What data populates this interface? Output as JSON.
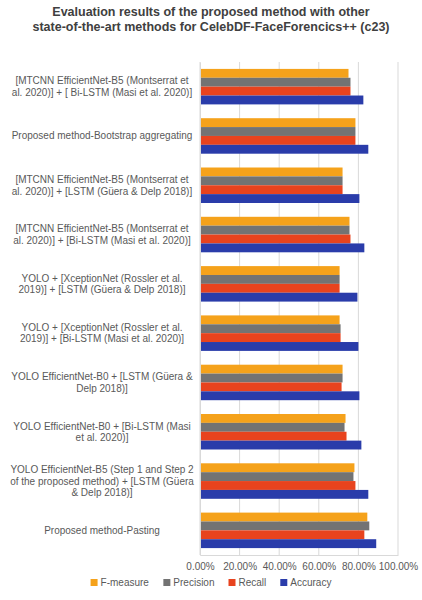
{
  "chart_data": {
    "type": "bar",
    "orientation": "horizontal",
    "title": "Evaluation results of the proposed method with other state-of-the-art methods for CelebDF-FaceForencics++ (c23)",
    "categories": [
      "[MTCNN EfficientNet-B5 (Montserrat et al. 2020)] + [ Bi-LSTM (Masi et al. 2020)]",
      "Proposed method-Bootstrap aggregating",
      "[MTCNN EfficientNet-B5 (Montserrat et al. 2020)] + [LSTM (Güera & Delp 2018)]",
      "[MTCNN EfficientNet-B5 (Montserrat et al. 2020)] + [Bi-LSTM (Masi et al. 2020)]",
      "YOLO + [XceptionNet (Rossler et al. 2019)] + [LSTM (Güera & Delp 2018)]",
      "YOLO + [XceptionNet (Rossler et al. 2019)] + [Bi-LSTM (Masi et al. 2020)]",
      "YOLO EfficientNet-B0 + [LSTM (Güera & Delp 2018)]",
      "YOLO EfficientNet-B0 + [Bi-LSTM (Masi et al. 2020)]",
      "YOLO EfficientNet-B5 (Step 1 and Step 2 of the proposed method) + [LSTM (Güera & Delp 2018)]",
      "Proposed method-Pasting"
    ],
    "series": [
      {
        "name": "F-measure",
        "color": "#f5a21b",
        "values": [
          75,
          78.5,
          72,
          75.5,
          70.5,
          70.5,
          72,
          73.5,
          78,
          84.5
        ]
      },
      {
        "name": "Precision",
        "color": "#737373",
        "values": [
          76,
          78.5,
          72,
          75.5,
          70.5,
          71,
          72,
          73,
          77.5,
          85.5
        ]
      },
      {
        "name": "Recall",
        "color": "#e8431e",
        "values": [
          76,
          78.5,
          72,
          76,
          70.5,
          71,
          71.5,
          74,
          78.5,
          83
        ]
      },
      {
        "name": "Accuracy",
        "color": "#2a3caa",
        "values": [
          82.5,
          85,
          80.5,
          83,
          79.5,
          80,
          80.5,
          81.5,
          85,
          89
        ]
      }
    ],
    "xlim": [
      0,
      100
    ],
    "xticks": [
      {
        "value": 0,
        "label": "0.00%"
      },
      {
        "value": 20,
        "label": "20.00%"
      },
      {
        "value": 40,
        "label": "40.00%"
      },
      {
        "value": 60,
        "label": "60.00%"
      },
      {
        "value": 80,
        "label": "80.00%"
      },
      {
        "value": 100,
        "label": "100.00%"
      }
    ],
    "grid": true,
    "legend": "bottom"
  }
}
